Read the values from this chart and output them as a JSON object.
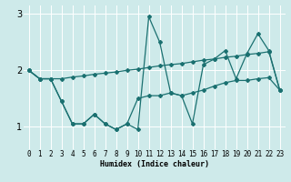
{
  "xlabel": "Humidex (Indice chaleur)",
  "bg_color": "#ceeaea",
  "grid_color": "#ffffff",
  "line_color": "#1a7070",
  "x": [
    0,
    1,
    2,
    3,
    4,
    5,
    6,
    7,
    8,
    9,
    10,
    11,
    12,
    13,
    14,
    15,
    16,
    17,
    18,
    19,
    20,
    21,
    22,
    23
  ],
  "series": [
    [
      2.0,
      1.85,
      1.85,
      1.85,
      1.88,
      1.9,
      1.93,
      1.95,
      1.97,
      2.0,
      2.02,
      2.05,
      2.08,
      2.1,
      2.12,
      2.15,
      2.18,
      2.2,
      2.23,
      2.25,
      2.28,
      2.3,
      2.33,
      1.65
    ],
    [
      2.0,
      1.85,
      1.85,
      1.45,
      1.05,
      1.05,
      1.22,
      1.05,
      0.95,
      1.05,
      0.95,
      2.95,
      2.5,
      1.6,
      1.55,
      1.05,
      2.1,
      2.2,
      2.35,
      1.85,
      2.3,
      2.65,
      2.35,
      1.65
    ],
    [
      2.0,
      1.85,
      1.85,
      1.45,
      1.05,
      1.05,
      1.22,
      1.05,
      0.95,
      1.05,
      1.5,
      1.55,
      1.55,
      1.6,
      1.55,
      1.6,
      1.65,
      1.72,
      1.78,
      1.82,
      1.82,
      1.85,
      1.87,
      1.65
    ]
  ],
  "ylim": [
    0.6,
    3.15
  ],
  "yticks": [
    1,
    2,
    3
  ],
  "xticks": [
    0,
    1,
    2,
    3,
    4,
    5,
    6,
    7,
    8,
    9,
    10,
    11,
    12,
    13,
    14,
    15,
    16,
    17,
    18,
    19,
    20,
    21,
    22,
    23
  ],
  "tick_fontsize": 5.5,
  "xlabel_fontsize": 6.0,
  "ylabel_fontsize": 7.0,
  "linewidth": 0.9,
  "markersize": 2.0
}
